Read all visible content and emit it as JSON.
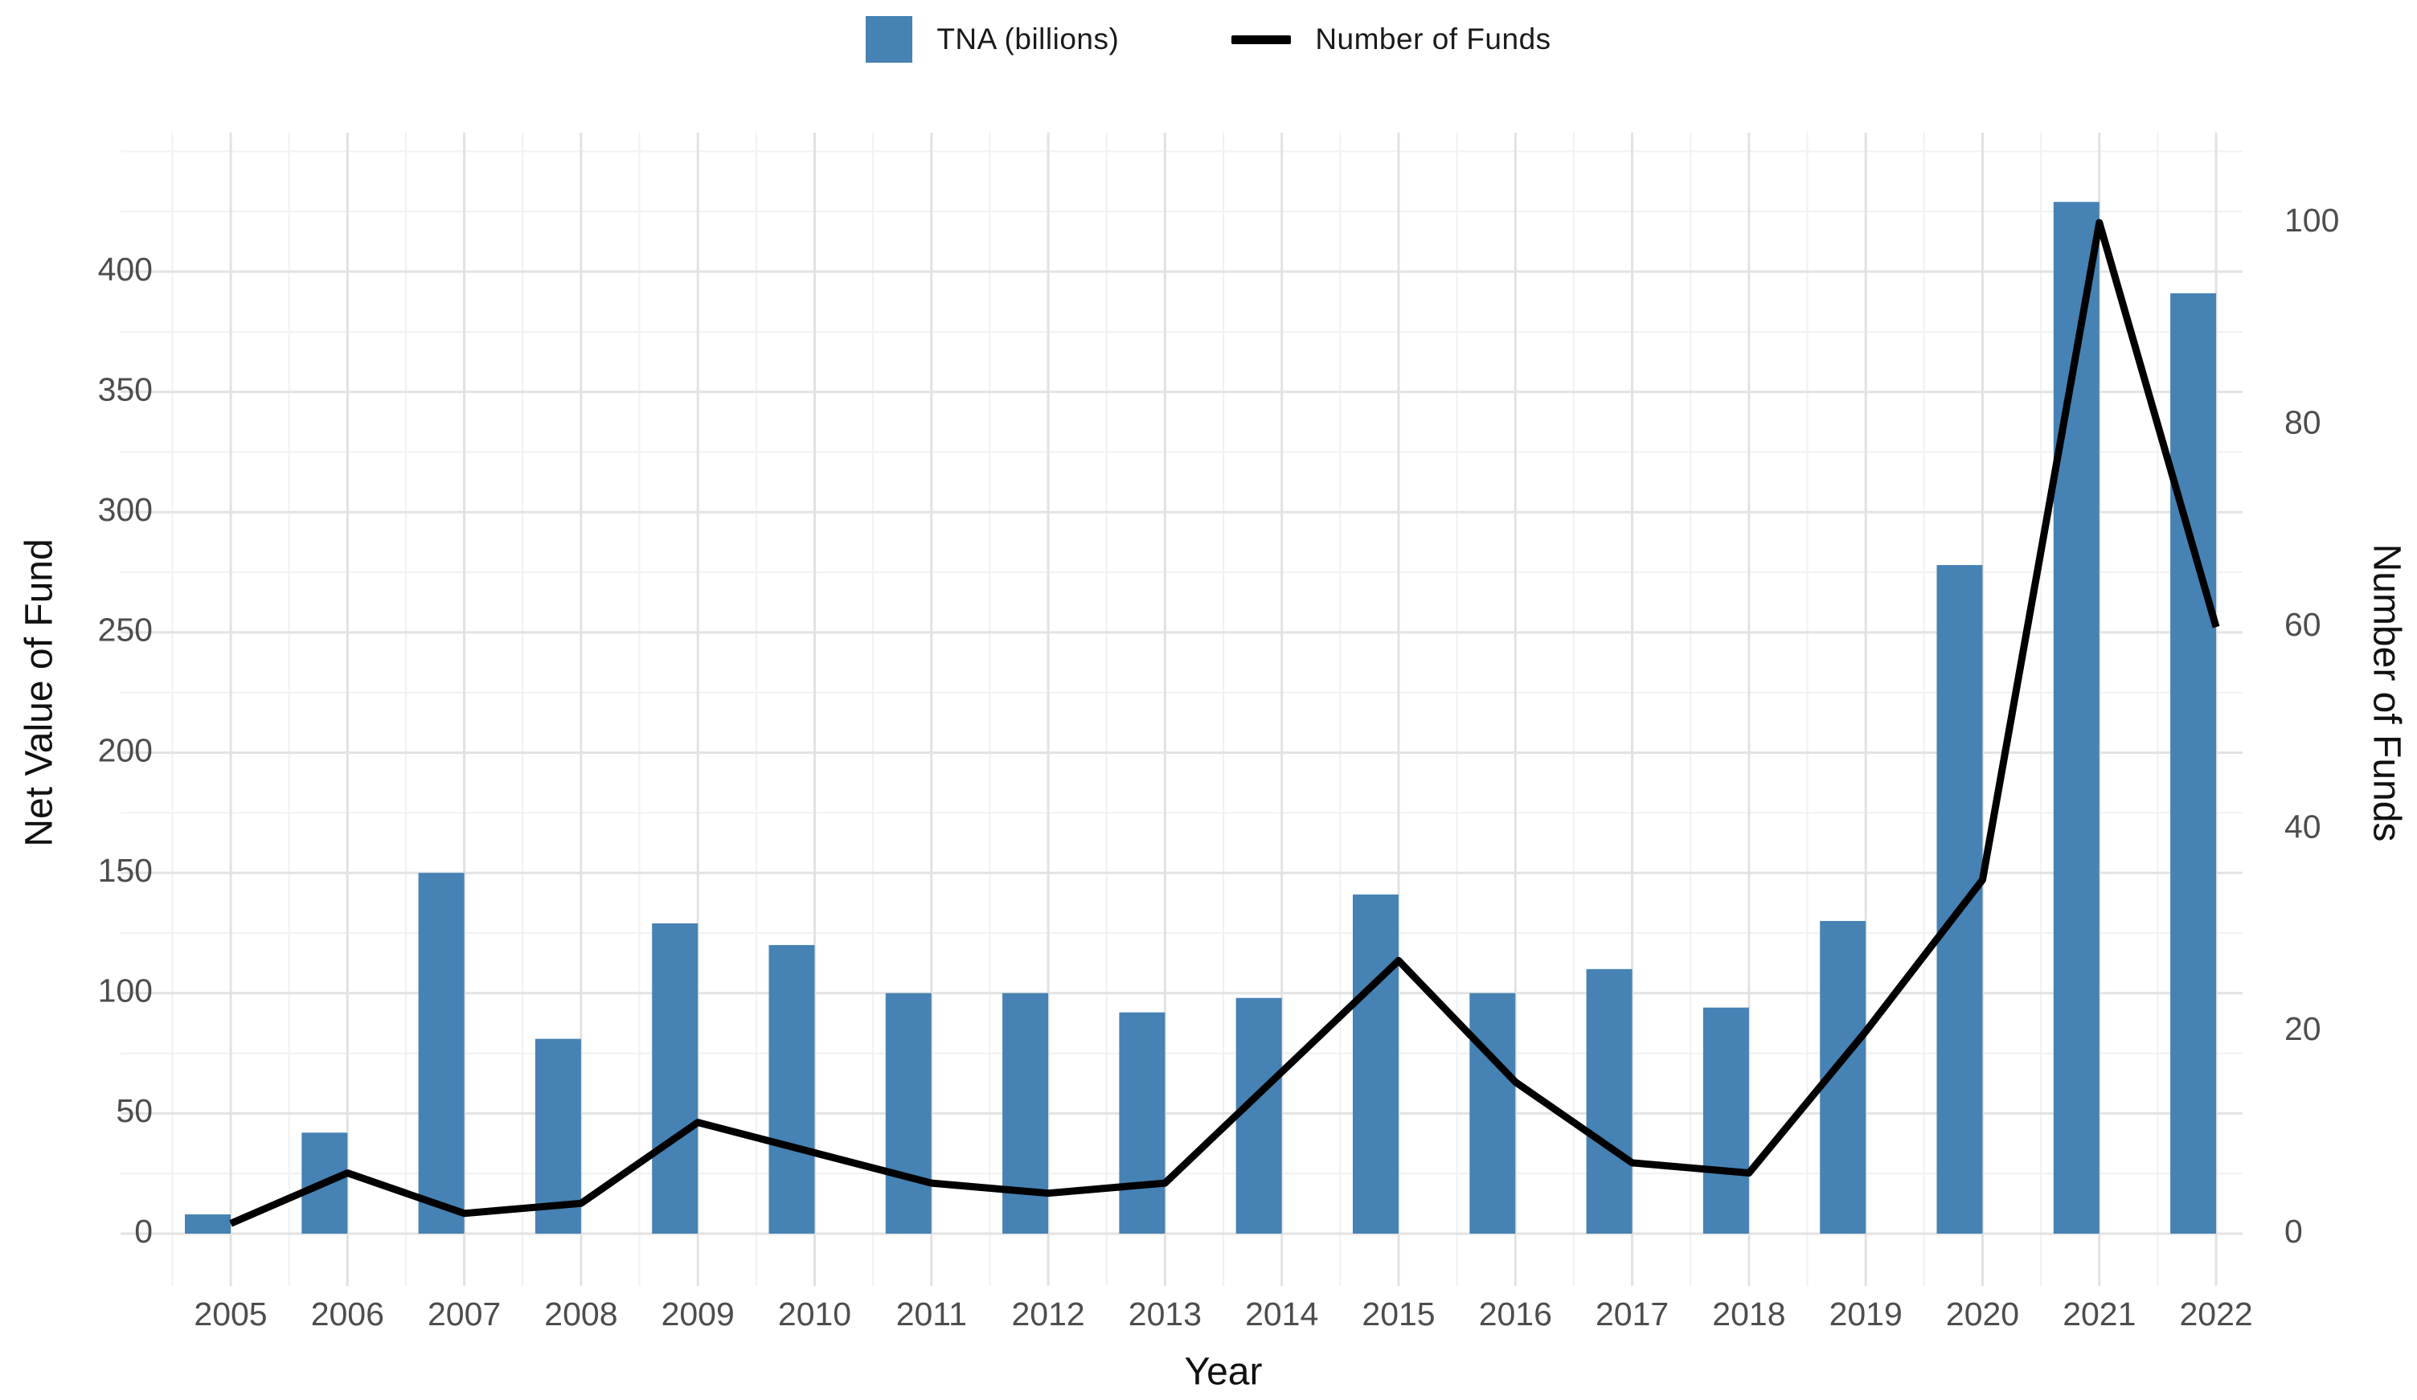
{
  "chart_data": {
    "type": "bar+line-dual-axis",
    "title": "",
    "categories": [
      "2005",
      "2006",
      "2007",
      "2008",
      "2009",
      "2010",
      "2011",
      "2012",
      "2013",
      "2014",
      "2015",
      "2016",
      "2017",
      "2018",
      "2019",
      "2020",
      "2021",
      "2022"
    ],
    "series": [
      {
        "name": "TNA (billions)",
        "type": "bar",
        "axis": "left",
        "color": "#4682B4",
        "values": [
          8,
          42,
          150,
          81,
          129,
          120,
          100,
          100,
          92,
          98,
          141,
          100,
          110,
          94,
          130,
          278,
          429,
          391
        ]
      },
      {
        "name": "Number of Funds",
        "type": "line",
        "axis": "right",
        "color": "#000000",
        "values": [
          1,
          6,
          2,
          3,
          11,
          8,
          5,
          4,
          5,
          16,
          27,
          15,
          7,
          6,
          20,
          35,
          100,
          60
        ]
      }
    ],
    "xlabel": "Year",
    "ylabel_left": "Net Value of Fund",
    "ylabel_right": "Number of Funds",
    "ylim_left": [
      0,
      450
    ],
    "ylim_right": [
      0,
      107.5
    ],
    "yticks_left": [
      0,
      50,
      100,
      150,
      200,
      250,
      300,
      350,
      400
    ],
    "yticks_right": [
      0,
      20,
      40,
      60,
      80,
      100
    ],
    "grid": "major and minor, light gray, no axis lines (minimal theme)",
    "legend_position": "top-center"
  },
  "legend": {
    "items": [
      {
        "label": "TNA (billions)",
        "swatch": "square",
        "color": "#4682B4"
      },
      {
        "label": "Number of Funds",
        "swatch": "line",
        "color": "#000000"
      }
    ]
  },
  "colors": {
    "bar": "#4682B4",
    "line": "#000000",
    "tick_text": "#4d4d4d",
    "title_text": "#111111",
    "grid_major": "#e2e2e2",
    "grid_minor": "#f1f1f1",
    "background": "#ffffff"
  }
}
